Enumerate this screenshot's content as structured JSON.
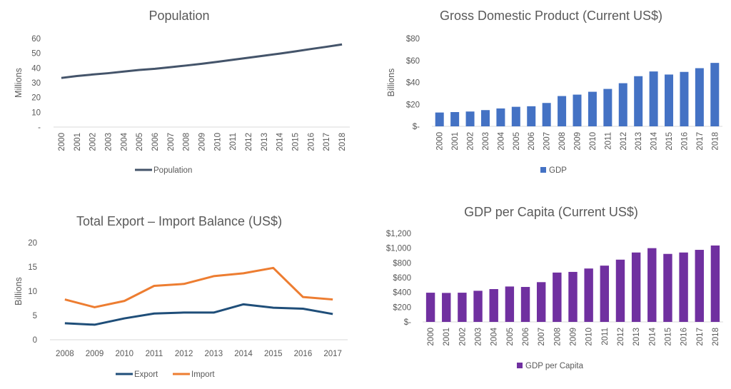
{
  "chart_data": [
    {
      "type": "line",
      "title": "Population",
      "ylabel": "Millions",
      "ylim": [
        0,
        60
      ],
      "yticks": [
        "-",
        "10",
        "20",
        "30",
        "40",
        "50",
        "60"
      ],
      "categories": [
        "2000",
        "2001",
        "2002",
        "2003",
        "2004",
        "2005",
        "2006",
        "2007",
        "2008",
        "2009",
        "2010",
        "2011",
        "2012",
        "2013",
        "2014",
        "2015",
        "2016",
        "2017",
        "2018"
      ],
      "series": [
        {
          "name": "Population",
          "color": "#44546A",
          "values": [
            33.3,
            34.6,
            35.6,
            36.5,
            37.6,
            38.7,
            39.5,
            40.6,
            41.7,
            42.9,
            44.2,
            45.6,
            47.0,
            48.4,
            49.8,
            51.3,
            52.9,
            54.4,
            56.0
          ]
        }
      ],
      "legend": "bottom",
      "grid": false
    },
    {
      "type": "bar",
      "title": "Gross Domestic Product (Current US$)",
      "ylabel": "Billions",
      "ylim": [
        0,
        80
      ],
      "yticks": [
        "$-",
        "$20",
        "$40",
        "$60",
        "$80"
      ],
      "categories": [
        "2000",
        "2001",
        "2002",
        "2003",
        "2004",
        "2005",
        "2006",
        "2007",
        "2008",
        "2009",
        "2010",
        "2011",
        "2012",
        "2013",
        "2014",
        "2015",
        "2016",
        "2017",
        "2018"
      ],
      "series": [
        {
          "name": "GDP",
          "color": "#4472C4",
          "values": [
            12.6,
            13.0,
            13.5,
            14.8,
            16.3,
            17.8,
            18.3,
            21.3,
            27.6,
            28.9,
            31.5,
            34.1,
            39.3,
            45.7,
            50.0,
            47.2,
            49.6,
            53.0,
            57.8
          ]
        }
      ],
      "legend": "bottom",
      "grid": false
    },
    {
      "type": "line",
      "title": "Total Export – Import Balance (US$)",
      "ylabel": "Billions",
      "ylim": [
        0,
        20
      ],
      "yticks": [
        "0",
        "5",
        "10",
        "15",
        "20"
      ],
      "categories": [
        "2008",
        "2009",
        "2010",
        "2011",
        "2012",
        "2013",
        "2014",
        "2015",
        "2016",
        "2017"
      ],
      "series": [
        {
          "name": "Export",
          "color": "#1F4E79",
          "values": [
            3.4,
            3.1,
            4.4,
            5.4,
            5.6,
            5.6,
            7.3,
            6.6,
            6.4,
            5.3
          ]
        },
        {
          "name": "Import",
          "color": "#ED7D31",
          "values": [
            8.3,
            6.7,
            8.0,
            11.1,
            11.5,
            13.1,
            13.7,
            14.8,
            8.8,
            8.3
          ]
        }
      ],
      "legend": "bottom",
      "grid": false
    },
    {
      "type": "bar",
      "title": "GDP per Capita (Current US$)",
      "ylabel": "",
      "ylim": [
        0,
        1200
      ],
      "yticks": [
        "$-",
        "$200",
        "$400",
        "$600",
        "$800",
        "$1,000",
        "$1,200"
      ],
      "categories": [
        "2000",
        "2001",
        "2002",
        "2003",
        "2004",
        "2005",
        "2006",
        "2007",
        "2008",
        "2009",
        "2010",
        "2011",
        "2012",
        "2013",
        "2014",
        "2015",
        "2016",
        "2017",
        "2018"
      ],
      "series": [
        {
          "name": "GDP per Capita",
          "color": "#7030A0",
          "values": [
            396,
            393,
            396,
            422,
            445,
            480,
            474,
            539,
            669,
            678,
            724,
            763,
            844,
            941,
            1000,
            922,
            941,
            977,
            1036
          ]
        }
      ],
      "legend": "bottom",
      "grid": false
    }
  ]
}
